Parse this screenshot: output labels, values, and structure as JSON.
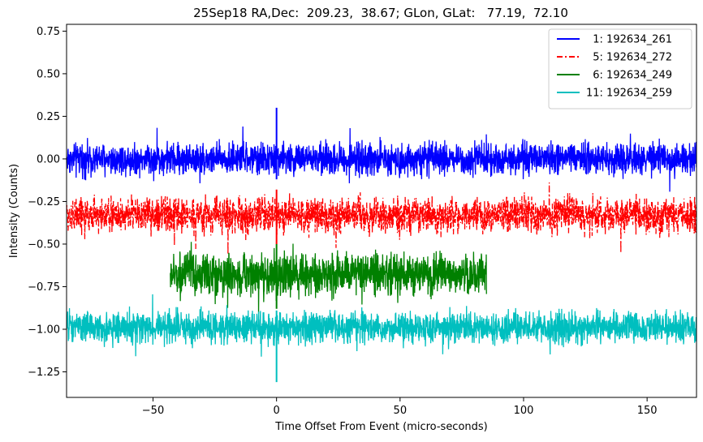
{
  "chart_data": {
    "type": "line",
    "title": "25Sep18 RA,Dec:  209.23,  38.67; GLon, GLat:   77.19,  72.10",
    "xlabel": "Time Offset From Event (micro-seconds)",
    "ylabel": "Intensity (Counts)",
    "xlim": [
      -85,
      170
    ],
    "ylim": [
      -1.4,
      0.79
    ],
    "xticks": [
      -50,
      0,
      50,
      100,
      150
    ],
    "yticks": [
      -1.25,
      -1.0,
      -0.75,
      -0.5,
      -0.25,
      0.0,
      0.25,
      0.5,
      0.75
    ],
    "xtick_labels": [
      "−50",
      "0",
      "50",
      "100",
      "150"
    ],
    "ytick_labels": [
      "−1.25",
      "−1.00",
      "−0.75",
      "−0.50",
      "−0.25",
      "0.00",
      "0.25",
      "0.50",
      "0.75"
    ],
    "legend_position": "top-right",
    "series": [
      {
        "name": "1: 192634_261",
        "label": "  1: 192634_261",
        "color": "#0000ff",
        "style": "solid",
        "x_range": [
          -85,
          170
        ],
        "baseline": 0.0,
        "noise_amplitude": 0.045,
        "spike": {
          "x": 0,
          "min": -0.12,
          "max": 0.3
        }
      },
      {
        "name": "5: 192634_272",
        "label": "  5: 192634_272",
        "color": "#ff0000",
        "style": "dashdot",
        "x_range": [
          -85,
          170
        ],
        "baseline": -0.33,
        "noise_amplitude": 0.05,
        "spike": {
          "x": 0,
          "min": -0.5,
          "max": -0.18
        }
      },
      {
        "name": "6: 192634_249",
        "label": "  6: 192634_249",
        "color": "#008000",
        "style": "solid",
        "x_range": [
          -43,
          85
        ],
        "baseline": -0.68,
        "noise_amplitude": 0.06,
        "spike": {
          "x": 0,
          "min": -0.88,
          "max": -0.5
        }
      },
      {
        "name": "11: 192634_259",
        "label": "11: 192634_259",
        "color": "#00bfbf",
        "style": "solid",
        "x_range": [
          -85,
          170
        ],
        "baseline": -0.99,
        "noise_amplitude": 0.045,
        "spike": {
          "x": 0,
          "min": -1.31,
          "max": -0.89
        }
      }
    ]
  }
}
